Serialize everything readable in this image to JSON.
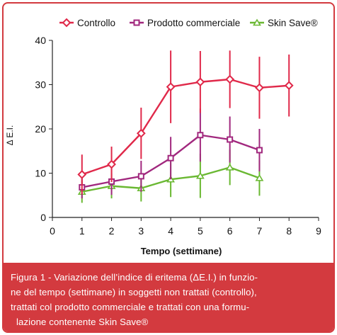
{
  "chart_data": {
    "type": "line",
    "title": "",
    "xlabel": "Tempo (settimane)",
    "ylabel": "Δ E.I.",
    "xlim": [
      0,
      9
    ],
    "ylim": [
      0,
      40
    ],
    "x_ticks": [
      0,
      1,
      2,
      3,
      4,
      5,
      6,
      7,
      8,
      9
    ],
    "y_ticks": [
      0,
      10,
      20,
      30,
      40
    ],
    "grid": false,
    "legend_position": "top",
    "series": [
      {
        "name": "Controllo",
        "color": "#e0294a",
        "marker": "diamond",
        "x": [
          1,
          2,
          3,
          4,
          5,
          6,
          7,
          8
        ],
        "y": [
          9.7,
          12.0,
          19.0,
          29.5,
          30.6,
          31.2,
          29.3,
          29.8
        ],
        "error": [
          4.5,
          4.0,
          5.8,
          8.2,
          7.0,
          6.5,
          7.0,
          7.0
        ]
      },
      {
        "name": "Prodotto commerciale",
        "color": "#a1287e",
        "marker": "square",
        "x": [
          1,
          2,
          3,
          4,
          5,
          6,
          7
        ],
        "y": [
          6.8,
          8.1,
          9.3,
          13.4,
          18.6,
          17.6,
          15.2
        ],
        "error": [
          2.5,
          3.0,
          3.5,
          4.8,
          6.0,
          5.2,
          4.8
        ]
      },
      {
        "name": "Skin Save®",
        "color": "#6ab832",
        "marker": "triangle",
        "x": [
          1,
          2,
          3,
          4,
          5,
          6,
          7
        ],
        "y": [
          5.8,
          7.1,
          6.6,
          8.6,
          9.4,
          11.3,
          8.9
        ],
        "error": [
          2.5,
          2.8,
          3.0,
          4.0,
          5.0,
          4.0,
          4.0
        ]
      }
    ]
  },
  "caption": {
    "line1": "Figura 1 - Variazione dell’indice di eritema (ΔE.I.) in funzio-",
    "line2": "ne del tempo (settimane) in soggetti non trattati (controllo),",
    "line3": "trattati col prodotto commerciale e trattati con una formu-",
    "line4": "lazione contenente Skin Save®"
  }
}
